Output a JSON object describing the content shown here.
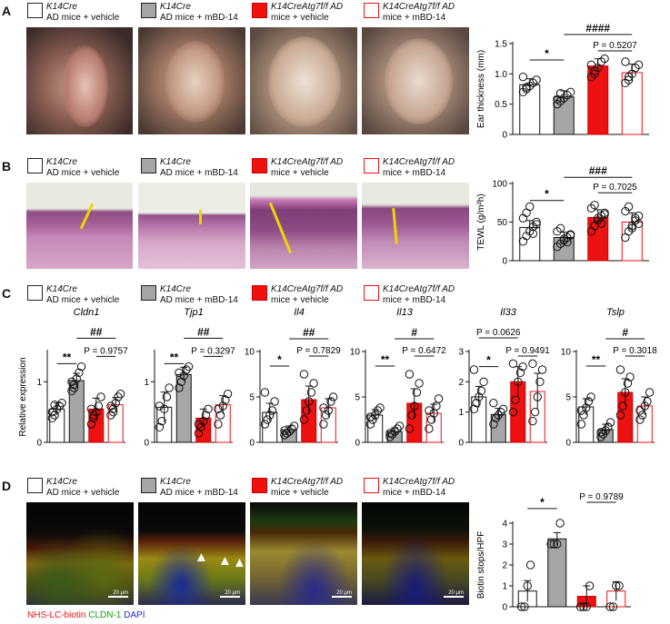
{
  "panels": {
    "A": {
      "letter": "A",
      "legend": [
        {
          "line1": "K14Cre",
          "line2": "AD mice + vehicle"
        },
        {
          "line1": "K14Cre",
          "line2": "AD mice + mBD-14"
        },
        {
          "line1": "K14CreAtg7f/f AD",
          "line2": "mice + vehicle"
        },
        {
          "line1": "K14CreAtg7f/f AD",
          "line2": "mice + mBD-14"
        }
      ]
    },
    "B": {
      "letter": "B",
      "legend": [
        {
          "line1": "K14Cre",
          "line2": "AD mice + vehicle"
        },
        {
          "line1": "K14Cre",
          "line2": "AD mice + mBD-14"
        },
        {
          "line1": "K14CreAtg7f/f AD",
          "line2": "mice + vehicle"
        },
        {
          "line1": "K14CreAtg7f/f AD",
          "line2": "mice + mBD-14"
        }
      ]
    },
    "C": {
      "letter": "C",
      "legend": [
        {
          "line1": "K14Cre",
          "line2": "AD mice + vehicle"
        },
        {
          "line1": "K14Cre",
          "line2": "AD mice + mBD-14"
        },
        {
          "line1": "K14CreAtg7f/f AD",
          "line2": "mice + vehicle"
        },
        {
          "line1": "K14CreAtg7f/f AD",
          "line2": "mice + mBD-14"
        }
      ]
    },
    "D": {
      "letter": "D",
      "legend": [
        {
          "line1": "K14Cre",
          "line2": "AD mice + vehicle"
        },
        {
          "line1": "K14Cre",
          "line2": "AD mice + mBD-14"
        },
        {
          "line1": "K14CreAtg7f/f AD",
          "line2": "mice + vehicle"
        },
        {
          "line1": "K14CreAtg7f/f AD",
          "line2": "mice + mBD-14"
        }
      ],
      "stain_label": {
        "biotin": "NHS-LC-biotin",
        "cldn": "CLDN-1",
        "dapi": "DAPI"
      },
      "scale_label": "20 μm"
    }
  },
  "colors": {
    "white_bar": "#ffffff",
    "gray_bar": "#a6a6a6",
    "red_bar": "#ee1111",
    "open_red": "#ee1111",
    "biotin": "#ee1111",
    "cldn": "#12a012",
    "dapi": "#1d2bd8"
  },
  "chart_data": [
    {
      "id": "A",
      "type": "bar",
      "ylabel": "Ear thickness (mm)",
      "ylim": [
        0,
        1.5
      ],
      "yticks": [
        "0",
        "0.5",
        "1.0",
        "1.5"
      ],
      "ytick_values": [
        0,
        0.5,
        1.0,
        1.5
      ],
      "groups": [
        "K14Cre AD mice + vehicle",
        "K14Cre AD mice + mBD-14",
        "K14CreAtg7f/f AD mice + vehicle",
        "K14CreAtg7f/f AD mice + mBD-14"
      ],
      "values": [
        0.82,
        0.62,
        1.13,
        1.02
      ],
      "errors": [
        0.1,
        0.1,
        0.12,
        0.14
      ],
      "points": [
        [
          0.7,
          0.75,
          0.8,
          0.85,
          0.9,
          0.95,
          0.78
        ],
        [
          0.5,
          0.55,
          0.6,
          0.65,
          0.7,
          0.58,
          0.68
        ],
        [
          0.95,
          1.0,
          1.1,
          1.2,
          1.25,
          1.15,
          1.05
        ],
        [
          0.85,
          0.95,
          1.0,
          1.1,
          1.15,
          1.2,
          0.9
        ]
      ],
      "annotations": [
        {
          "text": "*",
          "from": 0,
          "to": 1,
          "level": 1.23
        },
        {
          "text": "####",
          "from": 1,
          "to": 3,
          "level": 1.65
        },
        {
          "text": "P = 0.5207",
          "from": 2,
          "to": 3,
          "level": 1.38
        }
      ]
    },
    {
      "id": "B",
      "type": "bar",
      "ylabel": "TEWL (g/m²h)",
      "ylim": [
        0,
        100
      ],
      "yticks": [
        "0",
        "50",
        "100"
      ],
      "ytick_values": [
        0,
        50,
        100
      ],
      "groups": [
        "K14Cre AD mice + vehicle",
        "K14Cre AD mice + mBD-14",
        "K14CreAtg7f/f AD mice + vehicle",
        "K14CreAtg7f/f AD mice + mBD-14"
      ],
      "values": [
        43,
        30,
        56,
        50
      ],
      "errors": [
        9,
        7,
        10,
        12
      ],
      "points": [
        [
          25,
          32,
          38,
          44,
          50,
          55,
          62,
          70,
          35,
          47
        ],
        [
          18,
          22,
          26,
          30,
          34,
          38,
          42,
          28,
          24,
          33
        ],
        [
          38,
          45,
          52,
          58,
          62,
          68,
          72,
          55,
          48,
          60
        ],
        [
          30,
          38,
          45,
          52,
          58,
          64,
          70,
          42,
          55,
          48
        ]
      ],
      "annotations": [
        {
          "text": "*",
          "from": 0,
          "to": 1,
          "level": 78
        },
        {
          "text": "###",
          "from": 1,
          "to": 3,
          "level": 108
        },
        {
          "text": "P = 0.7025",
          "from": 2,
          "to": 3,
          "level": 88
        }
      ]
    },
    {
      "id": "C1",
      "type": "bar",
      "title": "Cldn1",
      "ylabel": "Relative expression",
      "ylim": [
        0,
        1.5
      ],
      "yticks": [
        "0",
        "1"
      ],
      "ytick_values": [
        0,
        1
      ],
      "groups": [
        "K14Cre AD mice + vehicle",
        "K14Cre AD mice + mBD-14",
        "K14CreAtg7f/f AD mice + vehicle",
        "K14CreAtg7f/f AD mice + mBD-14"
      ],
      "values": [
        0.55,
        1.02,
        0.55,
        0.62
      ],
      "errors": [
        0.1,
        0.12,
        0.18,
        0.12
      ],
      "points": [
        [
          0.4,
          0.45,
          0.55,
          0.6,
          0.65,
          0.5,
          0.62
        ],
        [
          0.85,
          0.95,
          1.05,
          1.15,
          1.25,
          1.0,
          0.9
        ],
        [
          0.3,
          0.4,
          0.5,
          0.6,
          0.75,
          0.55,
          0.45
        ],
        [
          0.45,
          0.55,
          0.65,
          0.75,
          0.8,
          0.6,
          0.5
        ]
      ],
      "annotations": [
        {
          "text": "**",
          "from": 0,
          "to": 1,
          "level": 1.3
        },
        {
          "text": "##",
          "from": 1,
          "to": 3,
          "level": 1.72
        },
        {
          "text": "P = 0.9757",
          "from": 2,
          "to": 3,
          "level": 1.42
        }
      ]
    },
    {
      "id": "C2",
      "type": "bar",
      "title": "Tjp1",
      "ylim": [
        0,
        1.5
      ],
      "yticks": [
        "0",
        "1"
      ],
      "ytick_values": [
        0,
        1
      ],
      "groups": [
        "K14Cre AD mice + vehicle",
        "K14Cre AD mice + mBD-14",
        "K14CreAtg7f/f AD mice + vehicle",
        "K14CreAtg7f/f AD mice + mBD-14"
      ],
      "values": [
        0.58,
        1.12,
        0.4,
        0.62
      ],
      "errors": [
        0.25,
        0.12,
        0.15,
        0.15
      ],
      "points": [
        [
          0.25,
          0.35,
          0.55,
          0.75,
          0.9,
          0.6
        ],
        [
          0.9,
          1.0,
          1.1,
          1.2,
          1.25,
          1.15
        ],
        [
          0.15,
          0.25,
          0.35,
          0.45,
          0.55,
          0.3
        ],
        [
          0.3,
          0.45,
          0.6,
          0.7,
          0.8,
          0.55
        ]
      ],
      "annotations": [
        {
          "text": "**",
          "from": 0,
          "to": 1,
          "level": 1.3
        },
        {
          "text": "##",
          "from": 1,
          "to": 3,
          "level": 1.72
        },
        {
          "text": "P = 0.3297",
          "from": 2,
          "to": 3,
          "level": 1.42
        }
      ]
    },
    {
      "id": "C3",
      "type": "bar",
      "title": "Il4",
      "ylim": [
        0,
        10
      ],
      "yticks": [
        "0",
        "5",
        "10"
      ],
      "ytick_values": [
        0,
        5,
        10
      ],
      "groups": [
        "K14Cre AD mice + vehicle",
        "K14Cre AD mice + mBD-14",
        "K14CreAtg7f/f AD mice + vehicle",
        "K14CreAtg7f/f AD mice + mBD-14"
      ],
      "values": [
        3.3,
        1.4,
        4.7,
        3.8
      ],
      "errors": [
        1.0,
        0.4,
        1.5,
        1.0
      ],
      "points": [
        [
          2.0,
          2.5,
          3.0,
          3.5,
          4.5,
          5.5
        ],
        [
          0.8,
          1.0,
          1.2,
          1.5,
          1.8,
          1.3
        ],
        [
          2.5,
          3.5,
          4.5,
          5.5,
          6.5,
          7.5
        ],
        [
          2.0,
          3.0,
          3.5,
          4.5,
          5.0,
          3.8
        ]
      ],
      "annotations": [
        {
          "text": "*",
          "from": 0,
          "to": 1,
          "level": 8.4
        },
        {
          "text": "##",
          "from": 1,
          "to": 3,
          "level": 11.4
        },
        {
          "text": "P = 0.7829",
          "from": 2,
          "to": 3,
          "level": 9.5
        }
      ]
    },
    {
      "id": "C4",
      "type": "bar",
      "title": "Il13",
      "ylim": [
        0,
        10
      ],
      "yticks": [
        "0",
        "5",
        "10"
      ],
      "ytick_values": [
        0,
        5,
        10
      ],
      "groups": [
        "K14Cre AD mice + vehicle",
        "K14Cre AD mice + mBD-14",
        "K14CreAtg7f/f AD mice + vehicle",
        "K14CreAtg7f/f AD mice + mBD-14"
      ],
      "values": [
        3.0,
        1.2,
        4.3,
        3.2
      ],
      "errors": [
        0.6,
        0.4,
        1.6,
        1.0
      ],
      "points": [
        [
          2.0,
          2.5,
          3.0,
          3.5,
          3.8,
          2.8
        ],
        [
          0.6,
          0.9,
          1.2,
          1.5,
          1.8,
          1.0
        ],
        [
          1.5,
          3.0,
          4.0,
          5.5,
          6.5,
          7.5
        ],
        [
          1.5,
          2.5,
          3.2,
          4.0,
          4.8,
          3.5
        ]
      ],
      "annotations": [
        {
          "text": "**",
          "from": 0,
          "to": 1,
          "level": 8.4
        },
        {
          "text": "#",
          "from": 1,
          "to": 3,
          "level": 11.4
        },
        {
          "text": "P = 0.6472",
          "from": 2,
          "to": 3,
          "level": 9.5
        }
      ]
    },
    {
      "id": "C5",
      "type": "bar",
      "title": "Il33",
      "ylim": [
        0,
        3
      ],
      "yticks": [
        "0",
        "1",
        "2",
        "3"
      ],
      "ytick_values": [
        0,
        1,
        2,
        3
      ],
      "groups": [
        "K14Cre AD mice + vehicle",
        "K14Cre AD mice + mBD-14",
        "K14CreAtg7f/f AD mice + vehicle",
        "K14CreAtg7f/f AD mice + mBD-14"
      ],
      "values": [
        1.5,
        0.92,
        2.0,
        1.68
      ],
      "errors": [
        0.35,
        0.2,
        0.5,
        0.6
      ],
      "points": [
        [
          1.1,
          1.3,
          1.5,
          1.7,
          2.0,
          2.4
        ],
        [
          0.6,
          0.8,
          0.9,
          1.0,
          1.1,
          1.3
        ],
        [
          1.0,
          1.4,
          2.0,
          2.3,
          2.5,
          2.6
        ],
        [
          0.7,
          1.0,
          1.5,
          2.0,
          2.4,
          2.6
        ]
      ],
      "annotations": [
        {
          "text": "*",
          "from": 0,
          "to": 1,
          "level": 2.5
        },
        {
          "text": "P = 0.0626",
          "from": 0,
          "to": 2,
          "level": 3.45
        },
        {
          "text": "P = 0.9491",
          "from": 2,
          "to": 3,
          "level": 2.85
        }
      ]
    },
    {
      "id": "C6",
      "type": "bar",
      "title": "Tslp",
      "ylim": [
        0,
        10
      ],
      "yticks": [
        "0",
        "5",
        "10"
      ],
      "ytick_values": [
        0,
        5,
        10
      ],
      "groups": [
        "K14Cre AD mice + vehicle",
        "K14Cre AD mice + mBD-14",
        "K14CreAtg7f/f AD mice + vehicle",
        "K14CreAtg7f/f AD mice + mBD-14"
      ],
      "values": [
        3.9,
        1.4,
        5.5,
        4.0
      ],
      "errors": [
        0.9,
        0.6,
        1.5,
        1.0
      ],
      "points": [
        [
          2.0,
          3.0,
          3.8,
          4.5,
          5.0,
          3.5
        ],
        [
          0.6,
          0.9,
          1.3,
          1.7,
          2.2,
          1.1
        ],
        [
          3.0,
          4.0,
          5.5,
          6.5,
          7.2,
          8.0
        ],
        [
          2.5,
          3.0,
          4.0,
          4.5,
          5.5,
          3.5
        ]
      ],
      "annotations": [
        {
          "text": "**",
          "from": 0,
          "to": 1,
          "level": 8.4
        },
        {
          "text": "#",
          "from": 1,
          "to": 3,
          "level": 11.4
        },
        {
          "text": "P = 0.3018",
          "from": 2,
          "to": 3,
          "level": 9.5
        }
      ]
    },
    {
      "id": "D",
      "type": "bar",
      "ylabel": "Biotin stops/HPF",
      "ylim": [
        0,
        4
      ],
      "yticks": [
        "0",
        "1",
        "2",
        "3",
        "4"
      ],
      "ytick_values": [
        0,
        1,
        2,
        3,
        4
      ],
      "groups": [
        "K14Cre AD mice + vehicle",
        "K14Cre AD mice + mBD-14",
        "K14CreAtg7f/f AD mice + vehicle",
        "K14CreAtg7f/f AD mice + mBD-14"
      ],
      "values": [
        0.75,
        3.25,
        0.5,
        0.75
      ],
      "errors": [
        0.5,
        0.3,
        0.5,
        0.45
      ],
      "points": [
        [
          0,
          0,
          1,
          2
        ],
        [
          3,
          3,
          3,
          4
        ],
        [
          0,
          0,
          0,
          1
        ],
        [
          0,
          0,
          1,
          1
        ]
      ],
      "annotations": [
        {
          "text": "*",
          "from": 0,
          "to": 1,
          "level": 4.7
        },
        {
          "text": "##",
          "from": 1,
          "to": 3,
          "level": 6.0
        },
        {
          "text": "P = 0.9789",
          "from": 2,
          "to": 3,
          "level": 5.0
        }
      ]
    }
  ]
}
